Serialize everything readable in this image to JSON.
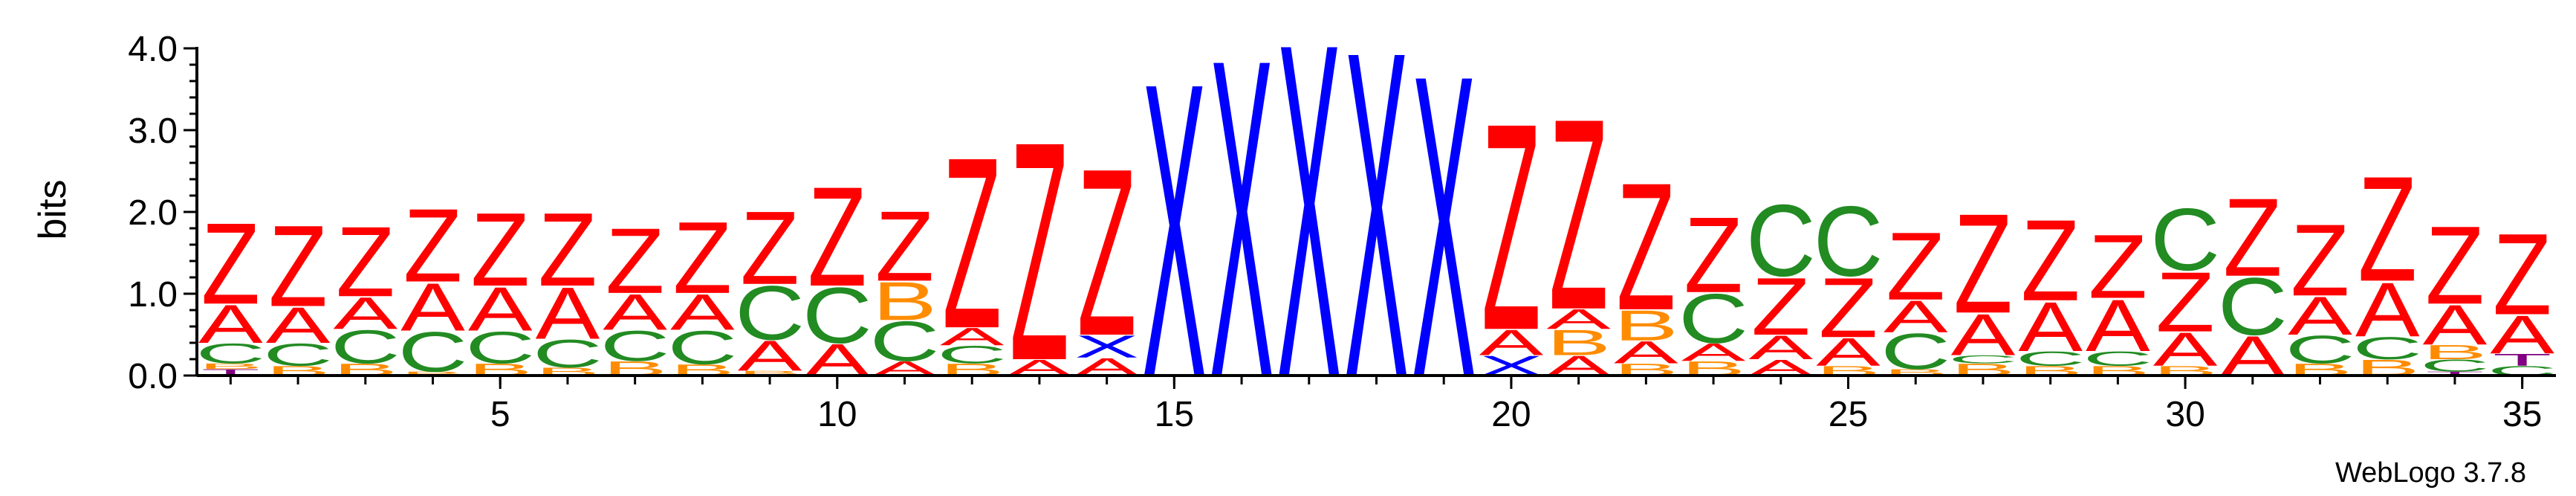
{
  "chart_data": {
    "type": "sequence-logo",
    "ylabel": "bits",
    "ylim": [
      0,
      4.0
    ],
    "y_ticks": [
      "0.0",
      "1.0",
      "2.0",
      "3.0",
      "4.0"
    ],
    "x_ticks": [
      "5",
      "10",
      "15",
      "20",
      "25",
      "30",
      "35"
    ],
    "x_tick_positions": [
      5,
      10,
      15,
      20,
      25,
      30,
      35
    ],
    "n_positions": 35,
    "credit": "WebLogo 3.7.8",
    "colors": {
      "A": "#ff0000",
      "Z": "#ff0000",
      "X": "#0000ff",
      "C": "#228b22",
      "B": "#ff8c00",
      "T": "#800080",
      "Q": "#ff0000",
      "O": "#ff8c00"
    },
    "positions": [
      [
        [
          "T",
          0.08
        ],
        [
          "B",
          0.07
        ],
        [
          "C",
          0.25
        ],
        [
          "A",
          0.48
        ],
        [
          "Z",
          1.02
        ]
      ],
      [
        [
          "B",
          0.12
        ],
        [
          "C",
          0.28
        ],
        [
          "A",
          0.45
        ],
        [
          "Z",
          1.02
        ]
      ],
      [
        [
          "B",
          0.15
        ],
        [
          "C",
          0.42
        ],
        [
          "A",
          0.4
        ],
        [
          "Z",
          0.88
        ]
      ],
      [
        [
          "B",
          0.05
        ],
        [
          "C",
          0.5
        ],
        [
          "A",
          0.6
        ],
        [
          "Z",
          0.92
        ]
      ],
      [
        [
          "B",
          0.15
        ],
        [
          "C",
          0.4
        ],
        [
          "A",
          0.55
        ],
        [
          "Z",
          0.92
        ]
      ],
      [
        [
          "B",
          0.1
        ],
        [
          "C",
          0.35
        ],
        [
          "A",
          0.65
        ],
        [
          "Z",
          0.92
        ]
      ],
      [
        [
          "B",
          0.18
        ],
        [
          "C",
          0.38
        ],
        [
          "A",
          0.45
        ],
        [
          "Z",
          0.82
        ]
      ],
      [
        [
          "B",
          0.14
        ],
        [
          "C",
          0.42
        ],
        [
          "A",
          0.45
        ],
        [
          "Z",
          0.9
        ]
      ],
      [
        [
          "B",
          0.06
        ],
        [
          "A",
          0.38
        ],
        [
          "C",
          0.68
        ],
        [
          "Z",
          0.92
        ]
      ],
      [
        [
          "A",
          0.4
        ],
        [
          "C",
          0.7
        ],
        [
          "Z",
          1.25
        ]
      ],
      [
        [
          "A",
          0.18
        ],
        [
          "C",
          0.5
        ],
        [
          "B",
          0.48
        ],
        [
          "Z",
          0.88
        ]
      ],
      [
        [
          "B",
          0.15
        ],
        [
          "C",
          0.22
        ],
        [
          "A",
          0.22
        ],
        [
          "Z",
          2.15
        ]
      ],
      [
        [
          "A",
          0.2
        ],
        [
          "Z",
          2.75
        ]
      ],
      [
        [
          "A",
          0.22
        ],
        [
          "X",
          0.28
        ],
        [
          "Z",
          2.1
        ]
      ],
      [
        [
          "X",
          3.7
        ]
      ],
      [
        [
          "X",
          4.0
        ]
      ],
      [
        [
          "X",
          4.2
        ]
      ],
      [
        [
          "X",
          4.1
        ]
      ],
      [
        [
          "X",
          3.8
        ]
      ],
      [
        [
          "X",
          0.25
        ],
        [
          "A",
          0.32
        ],
        [
          "Z",
          2.6
        ]
      ],
      [
        [
          "A",
          0.25
        ],
        [
          "B",
          0.32
        ],
        [
          "A",
          0.25
        ],
        [
          "Z",
          2.4
        ]
      ],
      [
        [
          "B",
          0.15
        ],
        [
          "A",
          0.28
        ],
        [
          "B",
          0.38
        ],
        [
          "Z",
          1.6
        ]
      ],
      [
        [
          "B",
          0.18
        ],
        [
          "A",
          0.22
        ],
        [
          "C",
          0.62
        ],
        [
          "Z",
          0.95
        ]
      ],
      [
        [
          "A",
          0.2
        ],
        [
          "A",
          0.3
        ],
        [
          "Z",
          0.72
        ],
        [
          "C",
          0.9
        ]
      ],
      [
        [
          "B",
          0.12
        ],
        [
          "A",
          0.35
        ],
        [
          "Z",
          0.75
        ],
        [
          "C",
          0.88
        ]
      ],
      [
        [
          "B",
          0.08
        ],
        [
          "C",
          0.45
        ],
        [
          "A",
          0.4
        ],
        [
          "Z",
          0.85
        ]
      ],
      [
        [
          "B",
          0.15
        ],
        [
          "C",
          0.1
        ],
        [
          "A",
          0.52
        ],
        [
          "Z",
          1.25
        ]
      ],
      [
        [
          "B",
          0.12
        ],
        [
          "C",
          0.18
        ],
        [
          "A",
          0.62
        ],
        [
          "Z",
          1.02
        ]
      ],
      [
        [
          "B",
          0.12
        ],
        [
          "C",
          0.18
        ],
        [
          "A",
          0.65
        ],
        [
          "Z",
          0.8
        ]
      ],
      [
        [
          "B",
          0.12
        ],
        [
          "A",
          0.42
        ],
        [
          "Z",
          0.75
        ],
        [
          "C",
          0.78
        ]
      ],
      [
        [
          "A",
          0.5
        ],
        [
          "C",
          0.72
        ],
        [
          "Z",
          0.98
        ]
      ],
      [
        [
          "B",
          0.15
        ],
        [
          "C",
          0.35
        ],
        [
          "A",
          0.48
        ],
        [
          "Z",
          0.9
        ]
      ],
      [
        [
          "B",
          0.2
        ],
        [
          "C",
          0.28
        ],
        [
          "A",
          0.68
        ],
        [
          "Z",
          1.32
        ]
      ],
      [
        [
          "T",
          0.05
        ],
        [
          "C",
          0.15
        ],
        [
          "B",
          0.18
        ],
        [
          "A",
          0.5
        ],
        [
          "Z",
          0.98
        ]
      ],
      [
        [
          "C",
          0.12
        ],
        [
          "T",
          0.15
        ],
        [
          "A",
          0.48
        ],
        [
          "Z",
          1.02
        ]
      ]
    ]
  }
}
